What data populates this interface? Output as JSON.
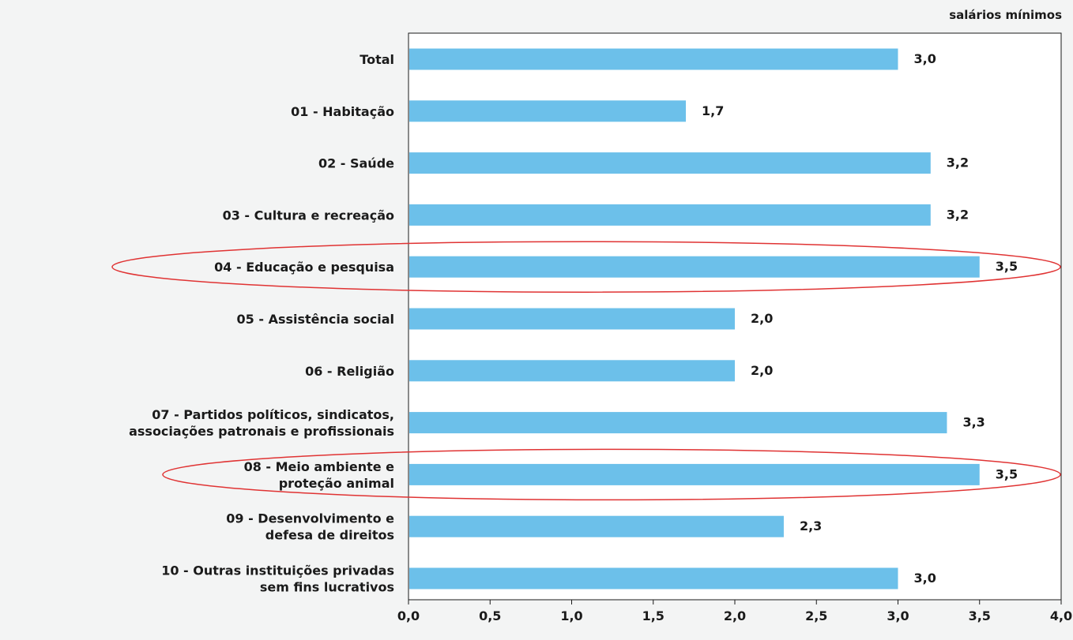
{
  "unit_label": "salários mínimos",
  "colors": {
    "bar": "#6cc0ea",
    "highlight": "#e03333",
    "axis": "#1a1a1a",
    "background": "#f3f4f4"
  },
  "chart_data": {
    "type": "bar",
    "orientation": "horizontal",
    "categories": [
      [
        "Total"
      ],
      [
        "01 - Habitação"
      ],
      [
        "02 - Saúde"
      ],
      [
        "03 - Cultura e recreação"
      ],
      [
        "04 - Educação e pesquisa"
      ],
      [
        "05 - Assistência social"
      ],
      [
        "06 - Religião"
      ],
      [
        "07 - Partidos políticos, sindicatos,",
        "associações patronais e profissionais"
      ],
      [
        "08 - Meio ambiente e",
        "proteção animal"
      ],
      [
        "09 - Desenvolvimento e",
        "defesa de direitos"
      ],
      [
        "10 - Outras instituições privadas",
        "sem fins lucrativos"
      ]
    ],
    "values": [
      3.0,
      1.7,
      3.2,
      3.2,
      3.5,
      2.0,
      2.0,
      3.3,
      3.5,
      2.3,
      3.0
    ],
    "value_labels": [
      "3,0",
      "1,7",
      "3,2",
      "3,2",
      "3,5",
      "2,0",
      "2,0",
      "3,3",
      "3,5",
      "2,3",
      "3,0"
    ],
    "bold_categories": [
      0
    ],
    "highlighted_categories": [
      4,
      8
    ],
    "xlim": [
      0,
      4
    ],
    "xticks": [
      0,
      0.5,
      1,
      1.5,
      2,
      2.5,
      3,
      3.5,
      4
    ],
    "xtick_labels": [
      "0,0",
      "0,5",
      "1,0",
      "1,5",
      "2,0",
      "2,5",
      "3,0",
      "3,5",
      "4,0"
    ],
    "grid": false
  }
}
